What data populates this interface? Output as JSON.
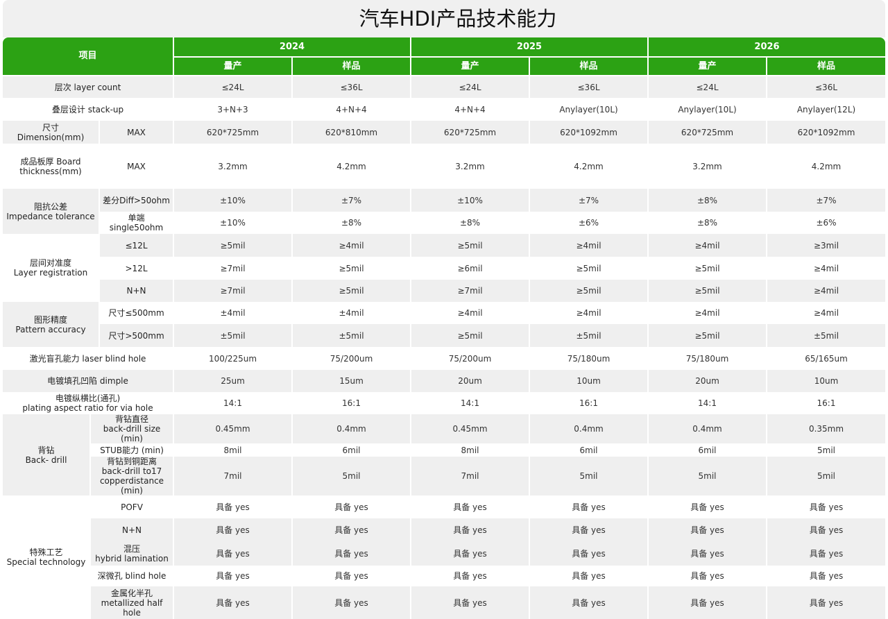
{
  "title": "汽车HDI产品技术能力",
  "header": {
    "item_label": "项目",
    "years": [
      "2024",
      "2025",
      "2026"
    ],
    "sub_labels": [
      "量产",
      "样品"
    ]
  },
  "colors": {
    "header_green": "#2ca214",
    "row_gray": "#efefef"
  },
  "groups": [
    {
      "label": "层次  layer count",
      "rows": [
        {
          "values": [
            "≤24L",
            "≤36L",
            "≤24L",
            "≤36L",
            "≤24L",
            "≤36L"
          ]
        }
      ]
    },
    {
      "label": "叠层设计 stack-up",
      "rows": [
        {
          "values": [
            "3+N+3",
            "4+N+4",
            "4+N+4",
            "Anylayer(10L)",
            "Anylayer(10L)",
            "Anylayer(12L)"
          ]
        }
      ]
    },
    {
      "label": "尺寸Dimension(mm)",
      "rows": [
        {
          "sub": "MAX",
          "values": [
            "620*725mm",
            "620*810mm",
            "620*725mm",
            "620*1092mm",
            "620*725mm",
            "620*1092mm"
          ]
        }
      ]
    },
    {
      "label": "成品板厚 Board thickness(mm)",
      "rows": [
        {
          "sub": "MAX",
          "values": [
            "3.2mm",
            "4.2mm",
            "3.2mm",
            "4.2mm",
            "3.2mm",
            "4.2mm"
          ]
        }
      ]
    },
    {
      "label": "阻抗公差\nImpedance tolerance",
      "rows": [
        {
          "sub": "差分Diff>50ohm",
          "values": [
            "±10%",
            "±7%",
            "±10%",
            "±7%",
            "±8%",
            "±7%"
          ]
        },
        {
          "sub": "单端 single50ohm",
          "values": [
            "±10%",
            "±8%",
            "±8%",
            "±6%",
            "±8%",
            "±6%"
          ]
        }
      ]
    },
    {
      "label": "层间对准度\nLayer registration",
      "rows": [
        {
          "sub": "≤12L",
          "values": [
            "≥5mil",
            "≥4mil",
            "≥5mil",
            "≥4mil",
            "≥4mil",
            "≥3mil"
          ]
        },
        {
          "sub": ">12L",
          "values": [
            "≥7mil",
            "≥5mil",
            "≥6mil",
            "≥5mil",
            "≥5mil",
            "≥4mil"
          ]
        },
        {
          "sub": "N+N",
          "values": [
            "≥7mil",
            "≥5mil",
            "≥7mil",
            "≥5mil",
            "≥5mil",
            "≥4mil"
          ]
        }
      ]
    },
    {
      "label": "图形精度\nPattern accuracy",
      "rows": [
        {
          "sub": "尺寸≤500mm",
          "values": [
            "±4mil",
            "±4mil",
            "≥4mil",
            "≥4mil",
            "≥4mil",
            "≥4mil"
          ]
        },
        {
          "sub": "尺寸>500mm",
          "values": [
            "±5mil",
            "±5mil",
            "≥5mil",
            "±5mil",
            "≥5mil",
            "±5mil"
          ]
        }
      ]
    },
    {
      "label": "激光盲孔能力 laser blind hole",
      "rows": [
        {
          "values": [
            "100/225um",
            "75/200um",
            "75/200um",
            "75/180um",
            "75/180um",
            "65/165um"
          ]
        }
      ]
    },
    {
      "label": "电镀填孔凹陷 dimple",
      "rows": [
        {
          "values": [
            "25um",
            "15um",
            "20um",
            "10um",
            "20um",
            "10um"
          ]
        }
      ]
    },
    {
      "label": "电镀纵横比(通孔)\nplating aspect ratio for via hole",
      "rows": [
        {
          "values": [
            "14:1",
            "16:1",
            "14:1",
            "16:1",
            "14:1",
            "16:1"
          ]
        }
      ]
    },
    {
      "label": "背钻\nBack- drill",
      "narrow": true,
      "rows": [
        {
          "sub": "背钻直径\nback-drill size (min)",
          "values": [
            "0.45mm",
            "0.4mm",
            "0.45mm",
            "0.4mm",
            "0.4mm",
            "0.35mm"
          ]
        },
        {
          "sub": "STUB能力 (min)",
          "values": [
            "8mil",
            "6mil",
            "8mil",
            "6mil",
            "6mil",
            "5mil"
          ]
        },
        {
          "sub": "背钻到铜距离\nback-drill to17\ncopperdistance (min)",
          "values": [
            "7mil",
            "5mil",
            "7mil",
            "5mil",
            "5mil",
            "5mil"
          ]
        }
      ]
    },
    {
      "label": "特殊工艺\nSpecial  technology",
      "narrow": true,
      "rows": [
        {
          "sub": "POFV",
          "values": [
            "具备 yes",
            "具备 yes",
            "具备 yes",
            "具备 yes",
            "具备 yes",
            "具备 yes"
          ]
        },
        {
          "sub": "N+N",
          "values": [
            "具备 yes",
            "具备 yes",
            "具备 yes",
            "具备 yes",
            "具备 yes",
            "具备 yes"
          ]
        },
        {
          "sub": "混压\nhybrid lamination",
          "values": [
            "具备 yes",
            "具备 yes",
            "具备 yes",
            "具备 yes",
            "具备 yes",
            "具备 yes"
          ]
        },
        {
          "sub": "深微孔 blind hole",
          "values": [
            "具备 yes",
            "具备 yes",
            "具备 yes",
            "具备 yes",
            "具备 yes",
            "具备 yes"
          ]
        },
        {
          "sub": "金属化半孔\nmetallized half hole",
          "values": [
            "具备 yes",
            "具备 yes",
            "具备 yes",
            "具备 yes",
            "具备 yes",
            "具备 yes"
          ]
        }
      ]
    }
  ]
}
